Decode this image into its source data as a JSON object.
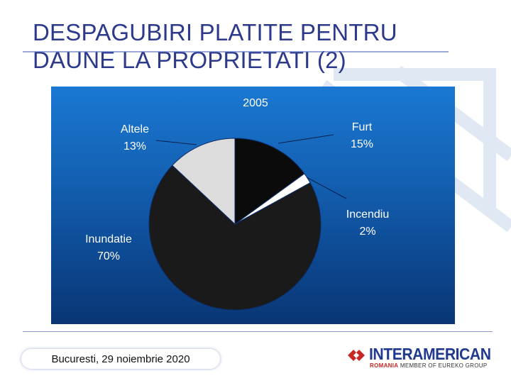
{
  "slide": {
    "title_line1": "DESPAGUBIRI PLATITE PENTRU",
    "title_line2": "DAUNE LA PROPRIETATI (2)",
    "footer_text": "Bucuresti, 29 noiembrie 2020"
  },
  "logo": {
    "name": "INTERAMERICAN",
    "sub_country": "ROMANIA",
    "sub_text": "MEMBER OF EUREKO GROUP",
    "colors": {
      "mark": "#c62828",
      "name": "#1f3a8f"
    }
  },
  "chart_data": {
    "type": "pie",
    "title": "2005",
    "categories": [
      "Furt",
      "Incendiu",
      "Inundatie",
      "Altele"
    ],
    "values": [
      15,
      2,
      70,
      13
    ],
    "labels": [
      "15%",
      "2%",
      "70%",
      "13%"
    ],
    "colors": [
      "#0b0b0b",
      "#ffffff",
      "#1a1a1a",
      "#dcdcdc"
    ],
    "start_angle_deg": 0,
    "direction": "clockwise",
    "legend": "none",
    "background": "#1463b6"
  }
}
